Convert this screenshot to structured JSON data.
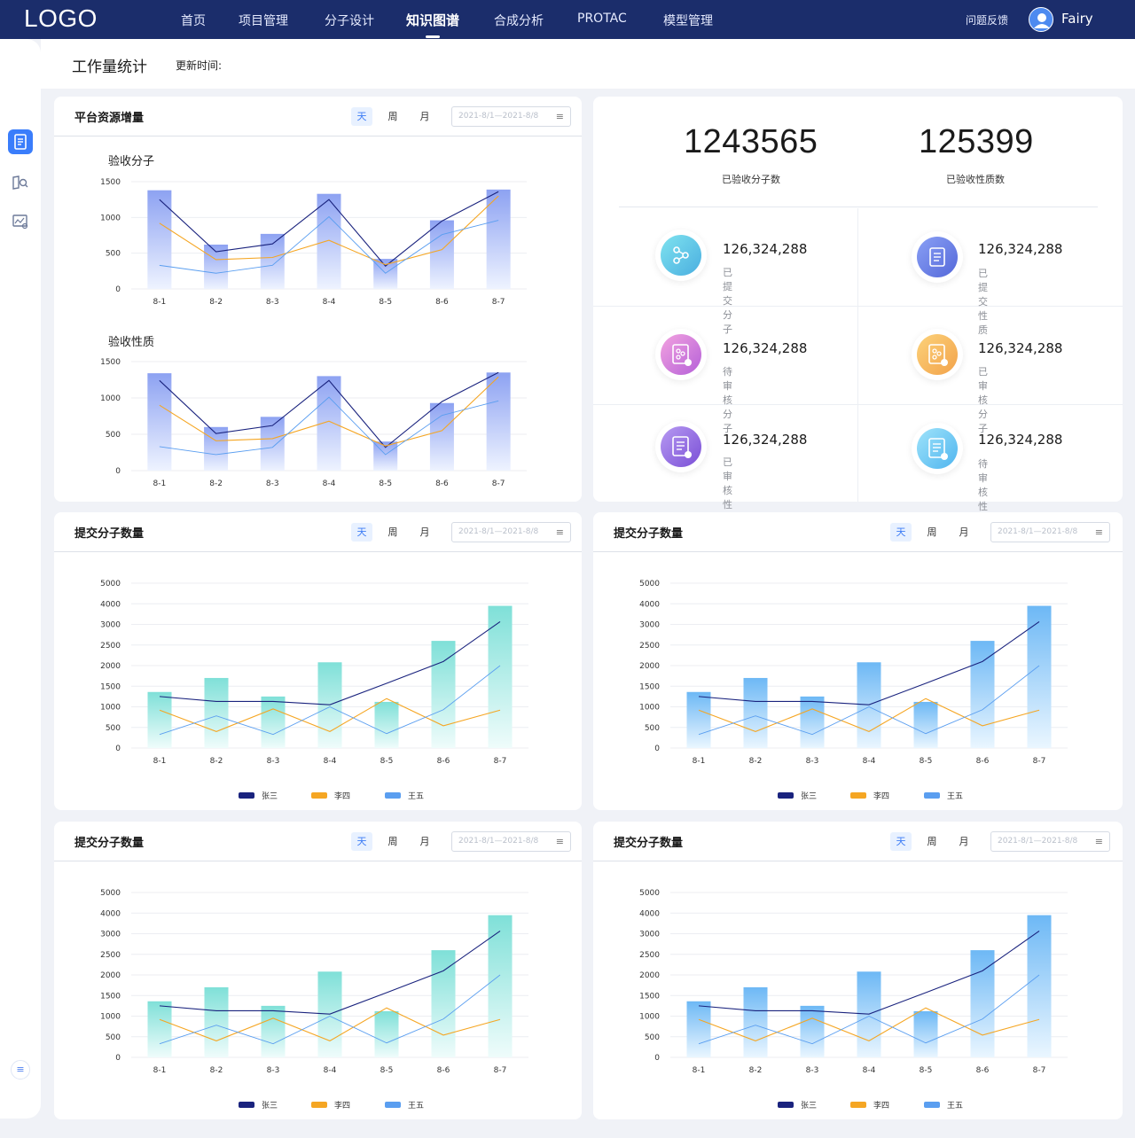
{
  "nav": {
    "logo": "LOGO",
    "items": [
      "首页",
      "项目管理",
      "分子设计",
      "知识图谱",
      "合成分析",
      "PROTAC",
      "模型管理"
    ],
    "feedback": "问题反馈",
    "user": "Fairy"
  },
  "page": {
    "title": "工作量统计",
    "update_label": "更新时间:"
  },
  "controls": {
    "day": "天",
    "week": "周",
    "month": "月",
    "date_range": "2021-8/1—2021-8/8"
  },
  "resource_card": {
    "title": "平台资源增量",
    "chart1_title": "验收分子",
    "chart2_title": "验收性质"
  },
  "summary": {
    "accepted_molecules": "1243565",
    "accepted_molecules_label": "已验收分子数",
    "accepted_properties": "125399",
    "accepted_properties_label": "已验收性质数",
    "stats": [
      {
        "value": "126,324,288",
        "label": "已提交分子",
        "icon": "molecule-share-icon"
      },
      {
        "value": "126,324,288",
        "label": "已提交性质",
        "icon": "document-icon"
      },
      {
        "value": "126,324,288",
        "label": "待审核分子",
        "icon": "molecule-pending-icon"
      },
      {
        "value": "126,324,288",
        "label": "已审核分子",
        "icon": "molecule-approved-icon"
      },
      {
        "value": "126,324,288",
        "label": "已审核性质",
        "icon": "document-approved-icon"
      },
      {
        "value": "126,324,288",
        "label": "待审核性质",
        "icon": "document-pending-icon"
      }
    ]
  },
  "submit_cards": {
    "title": "提交分子数量",
    "legend": [
      "张三",
      "李四",
      "王五"
    ]
  },
  "colors": {
    "nav_bg": "#1b2d6b",
    "accent": "#3a7dfb",
    "series_1": "#1a237e",
    "series_2": "#f5a623",
    "series_3": "#5a9ef0",
    "bar_teal": "#7fe0d8",
    "bar_blue": "#6db8f5",
    "bar_indigo": "#8aa6f2"
  },
  "chart_data": [
    {
      "type": "bar",
      "title": "验收分子",
      "categories": [
        "8-1",
        "8-2",
        "8-3",
        "8-4",
        "8-5",
        "8-6",
        "8-7"
      ],
      "ylim": [
        0,
        1500
      ],
      "yticks": [
        0,
        500,
        1000,
        1500
      ],
      "bars": [
        1380,
        620,
        770,
        1330,
        420,
        960,
        1390
      ],
      "series": [
        {
          "name": "张三",
          "values": [
            1250,
            520,
            630,
            1250,
            320,
            950,
            1360
          ]
        },
        {
          "name": "李四",
          "values": [
            920,
            410,
            440,
            680,
            340,
            550,
            1300
          ]
        },
        {
          "name": "王五",
          "values": [
            330,
            220,
            330,
            1010,
            220,
            760,
            960
          ]
        }
      ]
    },
    {
      "type": "bar",
      "title": "验收性质",
      "categories": [
        "8-1",
        "8-2",
        "8-3",
        "8-4",
        "8-5",
        "8-6",
        "8-7"
      ],
      "ylim": [
        0,
        1500
      ],
      "yticks": [
        0,
        500,
        1000,
        1500
      ],
      "bars": [
        1340,
        600,
        740,
        1300,
        400,
        930,
        1350
      ],
      "series": [
        {
          "name": "张三",
          "values": [
            1240,
            510,
            620,
            1240,
            320,
            950,
            1350
          ]
        },
        {
          "name": "李四",
          "values": [
            900,
            410,
            440,
            680,
            340,
            550,
            1290
          ]
        },
        {
          "name": "王五",
          "values": [
            330,
            220,
            320,
            1010,
            220,
            760,
            960
          ]
        }
      ]
    },
    {
      "type": "bar",
      "title": "提交分子数量",
      "categories": [
        "8-1",
        "8-2",
        "8-3",
        "8-4",
        "8-5",
        "8-6",
        "8-7"
      ],
      "yticks": [
        0,
        500,
        1000,
        1500,
        2000,
        2500,
        3000,
        4000,
        5000
      ],
      "bars": [
        1360,
        1700,
        1250,
        2080,
        1120,
        2600,
        3900
      ],
      "series": [
        {
          "name": "张三",
          "values": [
            1250,
            1130,
            1130,
            1050,
            1570,
            2100,
            3130
          ]
        },
        {
          "name": "李四",
          "values": [
            920,
            400,
            950,
            400,
            1200,
            540,
            920
          ]
        },
        {
          "name": "王五",
          "values": [
            330,
            780,
            330,
            1000,
            350,
            930,
            2000
          ]
        }
      ]
    }
  ]
}
